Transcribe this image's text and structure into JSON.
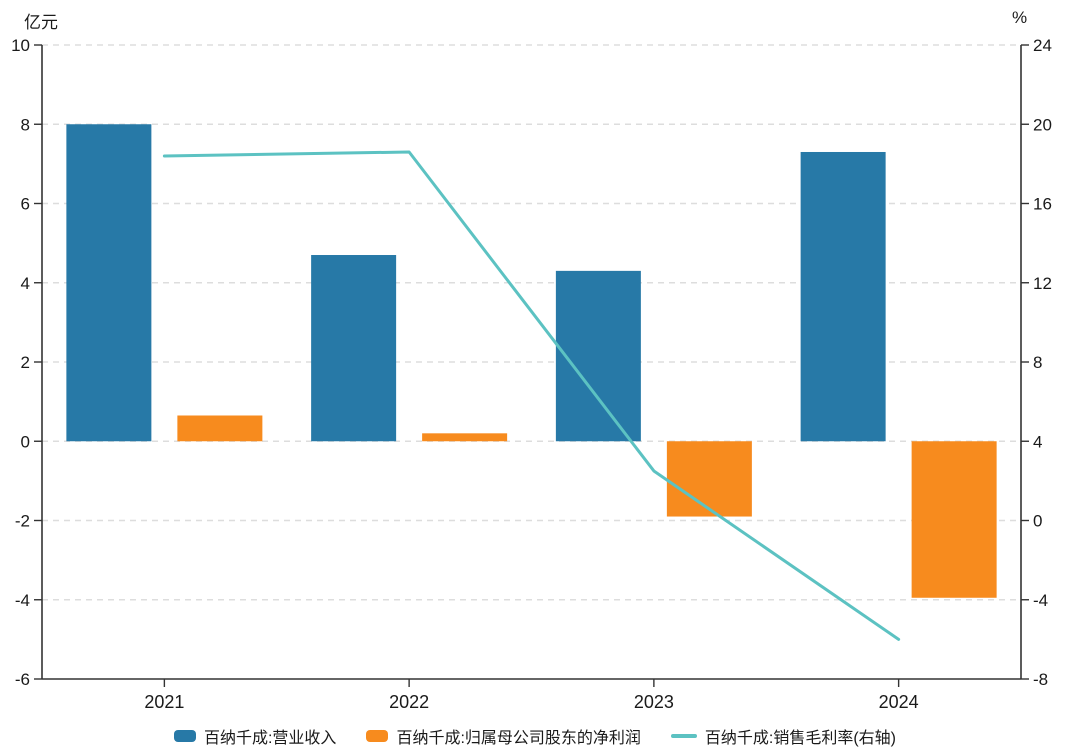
{
  "chart_data": {
    "type": "bar",
    "title": "",
    "categories": [
      "2021",
      "2022",
      "2023",
      "2024"
    ],
    "series": [
      {
        "name": "百纳千成:营业收入",
        "kind": "bar",
        "axis": "left",
        "color": "#2779a7",
        "values": [
          8.0,
          4.7,
          4.3,
          7.3
        ]
      },
      {
        "name": "百纳千成:归属母公司股东的净利润",
        "kind": "bar",
        "axis": "left",
        "color": "#f78b1e",
        "values": [
          0.65,
          0.2,
          -1.9,
          -3.95
        ]
      },
      {
        "name": "百纳千成:销售毛利率(右轴)",
        "kind": "line",
        "axis": "right",
        "color": "#5cc2c2",
        "values": [
          18.4,
          18.6,
          2.5,
          -6.0
        ]
      }
    ],
    "left_axis": {
      "label": "亿元",
      "min": -6,
      "max": 10,
      "step": 2
    },
    "right_axis": {
      "label": "%",
      "min": -8,
      "max": 24,
      "step": 4
    },
    "legend_position": "bottom",
    "grid": "horizontal-dashed",
    "colors": {
      "axis": "#333333",
      "grid": "#dddddd",
      "text": "#1a1a1a"
    }
  }
}
